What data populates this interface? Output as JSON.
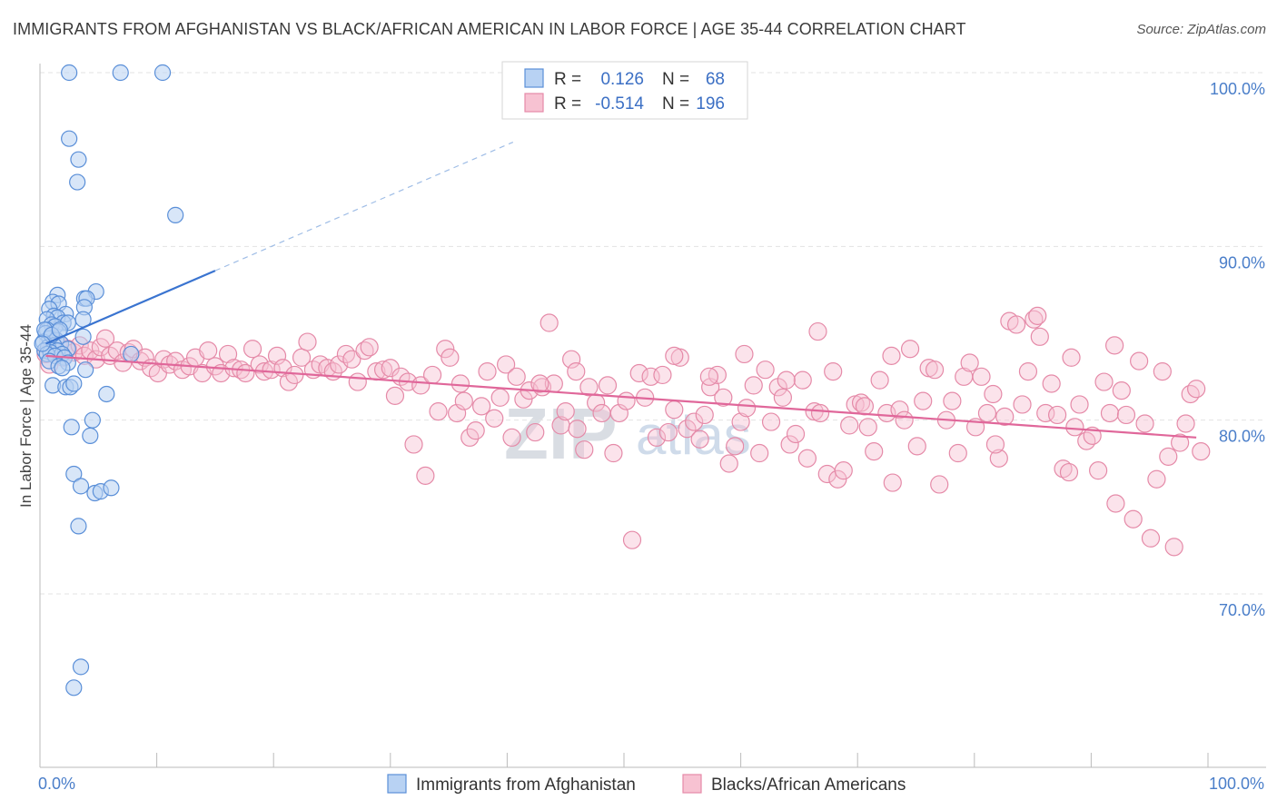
{
  "title": "IMMIGRANTS FROM AFGHANISTAN VS BLACK/AFRICAN AMERICAN IN LABOR FORCE | AGE 35-44 CORRELATION CHART",
  "source": "Source: ZipAtlas.com",
  "watermark": {
    "zip": "ZIP",
    "atlas": "atlas"
  },
  "legend": {
    "series": [
      {
        "r_label": "R =",
        "r_value": "0.126",
        "n_label": "N =",
        "n_value": "68"
      },
      {
        "r_label": "R =",
        "r_value": "-0.514",
        "n_label": "N =",
        "n_value": "196"
      }
    ]
  },
  "bottom_legend": [
    "Immigrants from Afghanistan",
    "Blacks/African Americans"
  ],
  "colors": {
    "blue_fill": "#b8d2f3",
    "blue_stroke": "#5a8fd8",
    "blue_line": "#3a74d0",
    "pink_fill": "#f7c2d2",
    "pink_stroke": "#e58aa8",
    "pink_line": "#e0679a",
    "grid": "#e3e3e3",
    "tick_text": "#4a7ec9"
  },
  "chart_data": {
    "type": "scatter",
    "title": "IMMIGRANTS FROM AFGHANISTAN VS BLACK/AFRICAN AMERICAN IN LABOR FORCE | AGE 35-44 CORRELATION CHART",
    "xlabel": "",
    "ylabel": "In Labor Force | Age 35-44",
    "xlim": [
      0,
      100
    ],
    "ylim": [
      60.5,
      101.5
    ],
    "x_tick_labels": [
      "0.0%",
      "100.0%"
    ],
    "y_ticks": [
      70,
      80,
      90,
      100
    ],
    "y_tick_labels": [
      "70.0%",
      "80.0%",
      "90.0%",
      "100.0%"
    ],
    "grid": true,
    "legend_position": "top-center",
    "series": [
      {
        "name": "Immigrants from Afghanistan",
        "r": 0.126,
        "n": 68,
        "trend": {
          "x0": 0.5,
          "y0": 84.4,
          "x1": 15.0,
          "y1": 88.6,
          "dash_to_x": 40.5,
          "dash_to_y": 96.0
        },
        "points": [
          [
            2.5,
            100.0
          ],
          [
            6.9,
            100.0
          ],
          [
            10.5,
            100.0
          ],
          [
            2.5,
            96.2
          ],
          [
            3.3,
            95.0
          ],
          [
            3.2,
            93.7
          ],
          [
            11.6,
            91.8
          ],
          [
            4.8,
            87.4
          ],
          [
            1.5,
            87.2
          ],
          [
            3.8,
            87.0
          ],
          [
            4.0,
            87.0
          ],
          [
            1.1,
            86.8
          ],
          [
            1.6,
            86.7
          ],
          [
            0.8,
            86.4
          ],
          [
            3.8,
            86.5
          ],
          [
            2.2,
            86.1
          ],
          [
            1.2,
            86.0
          ],
          [
            1.5,
            85.9
          ],
          [
            3.7,
            85.8
          ],
          [
            0.6,
            85.8
          ],
          [
            2.0,
            85.6
          ],
          [
            2.4,
            85.6
          ],
          [
            1.0,
            85.5
          ],
          [
            1.3,
            85.4
          ],
          [
            0.6,
            85.2
          ],
          [
            1.6,
            85.1
          ],
          [
            0.5,
            85.0
          ],
          [
            3.7,
            84.8
          ],
          [
            0.8,
            84.7
          ],
          [
            1.4,
            84.6
          ],
          [
            0.3,
            84.5
          ],
          [
            1.8,
            84.4
          ],
          [
            1.2,
            84.3
          ],
          [
            0.7,
            84.2
          ],
          [
            2.4,
            84.1
          ],
          [
            0.4,
            84.0
          ],
          [
            1.5,
            84.0
          ],
          [
            0.9,
            83.9
          ],
          [
            1.9,
            83.8
          ],
          [
            0.6,
            83.8
          ],
          [
            1.3,
            83.7
          ],
          [
            2.1,
            83.6
          ],
          [
            7.8,
            83.8
          ],
          [
            0.8,
            83.4
          ],
          [
            2.4,
            83.3
          ],
          [
            1.6,
            83.1
          ],
          [
            1.9,
            83.0
          ],
          [
            3.9,
            82.9
          ],
          [
            1.1,
            82.0
          ],
          [
            2.2,
            81.9
          ],
          [
            2.6,
            81.9
          ],
          [
            2.9,
            82.1
          ],
          [
            5.7,
            81.5
          ],
          [
            4.5,
            80.0
          ],
          [
            2.7,
            79.6
          ],
          [
            4.3,
            79.1
          ],
          [
            2.9,
            76.9
          ],
          [
            3.5,
            76.2
          ],
          [
            4.7,
            75.8
          ],
          [
            5.2,
            75.9
          ],
          [
            6.1,
            76.1
          ],
          [
            3.3,
            73.9
          ],
          [
            3.5,
            65.8
          ],
          [
            2.9,
            64.6
          ],
          [
            0.4,
            85.2
          ],
          [
            1.0,
            84.9
          ],
          [
            1.7,
            85.2
          ],
          [
            0.2,
            84.4
          ]
        ]
      },
      {
        "name": "Blacks/African Americans",
        "r": -0.514,
        "n": 196,
        "trend": {
          "x0": 0.5,
          "y0": 83.7,
          "x1": 99.0,
          "y1": 79.0
        },
        "points": [
          [
            0.5,
            83.8
          ],
          [
            0.8,
            83.2
          ],
          [
            1.2,
            84.0
          ],
          [
            1.6,
            84.4
          ],
          [
            2.0,
            83.6
          ],
          [
            2.4,
            84.1
          ],
          [
            2.9,
            83.9
          ],
          [
            3.4,
            84.3
          ],
          [
            3.8,
            83.7
          ],
          [
            4.3,
            84.0
          ],
          [
            4.8,
            83.5
          ],
          [
            5.2,
            84.2
          ],
          [
            5.6,
            84.7
          ],
          [
            6.0,
            83.7
          ],
          [
            6.6,
            84.0
          ],
          [
            7.1,
            83.3
          ],
          [
            7.6,
            83.9
          ],
          [
            8.0,
            84.1
          ],
          [
            8.6,
            83.4
          ],
          [
            9.0,
            83.6
          ],
          [
            9.5,
            83.0
          ],
          [
            10.1,
            82.7
          ],
          [
            10.6,
            83.5
          ],
          [
            11.1,
            83.2
          ],
          [
            11.6,
            83.4
          ],
          [
            12.2,
            82.9
          ],
          [
            12.8,
            83.1
          ],
          [
            13.3,
            83.6
          ],
          [
            13.9,
            82.7
          ],
          [
            14.4,
            84.0
          ],
          [
            15.0,
            83.1
          ],
          [
            15.5,
            82.7
          ],
          [
            16.1,
            83.8
          ],
          [
            16.6,
            83.0
          ],
          [
            17.2,
            82.9
          ],
          [
            17.6,
            82.7
          ],
          [
            18.2,
            84.1
          ],
          [
            18.8,
            83.2
          ],
          [
            19.2,
            82.8
          ],
          [
            19.8,
            82.9
          ],
          [
            20.3,
            83.7
          ],
          [
            20.8,
            83.0
          ],
          [
            21.3,
            82.2
          ],
          [
            21.8,
            82.6
          ],
          [
            22.4,
            83.6
          ],
          [
            22.9,
            84.5
          ],
          [
            23.4,
            82.9
          ],
          [
            24.0,
            83.2
          ],
          [
            24.6,
            83.0
          ],
          [
            25.1,
            82.8
          ],
          [
            25.6,
            83.2
          ],
          [
            26.2,
            83.8
          ],
          [
            26.7,
            83.5
          ],
          [
            27.2,
            82.2
          ],
          [
            27.8,
            84.0
          ],
          [
            28.2,
            84.2
          ],
          [
            28.8,
            82.8
          ],
          [
            29.4,
            82.9
          ],
          [
            30.0,
            83.0
          ],
          [
            30.4,
            81.4
          ],
          [
            30.9,
            82.5
          ],
          [
            31.5,
            82.2
          ],
          [
            32.0,
            78.6
          ],
          [
            32.6,
            82.0
          ],
          [
            33.0,
            76.8
          ],
          [
            33.6,
            82.6
          ],
          [
            34.1,
            80.5
          ],
          [
            34.7,
            84.1
          ],
          [
            35.1,
            83.6
          ],
          [
            35.7,
            80.4
          ],
          [
            36.3,
            81.1
          ],
          [
            36.8,
            79.0
          ],
          [
            37.3,
            79.4
          ],
          [
            37.8,
            80.8
          ],
          [
            38.3,
            82.8
          ],
          [
            38.9,
            80.1
          ],
          [
            39.4,
            81.3
          ],
          [
            39.9,
            83.2
          ],
          [
            40.4,
            79.0
          ],
          [
            40.8,
            82.5
          ],
          [
            41.4,
            81.2
          ],
          [
            41.9,
            81.7
          ],
          [
            42.4,
            79.3
          ],
          [
            43.0,
            81.9
          ],
          [
            43.6,
            85.6
          ],
          [
            44.0,
            82.1
          ],
          [
            44.6,
            79.7
          ],
          [
            45.0,
            80.5
          ],
          [
            45.5,
            83.5
          ],
          [
            46.0,
            79.5
          ],
          [
            46.6,
            78.3
          ],
          [
            47.0,
            81.9
          ],
          [
            47.6,
            81.0
          ],
          [
            48.1,
            80.4
          ],
          [
            48.6,
            82.0
          ],
          [
            49.1,
            78.1
          ],
          [
            49.6,
            80.4
          ],
          [
            50.2,
            81.1
          ],
          [
            50.7,
            73.1
          ],
          [
            51.3,
            82.7
          ],
          [
            51.8,
            81.3
          ],
          [
            52.3,
            82.5
          ],
          [
            52.8,
            79.0
          ],
          [
            53.3,
            82.6
          ],
          [
            53.8,
            79.3
          ],
          [
            54.3,
            80.6
          ],
          [
            54.8,
            83.6
          ],
          [
            55.4,
            79.5
          ],
          [
            56.0,
            79.9
          ],
          [
            56.5,
            78.9
          ],
          [
            56.9,
            80.3
          ],
          [
            57.4,
            81.9
          ],
          [
            58.0,
            82.6
          ],
          [
            58.5,
            81.3
          ],
          [
            59.0,
            77.5
          ],
          [
            59.5,
            78.5
          ],
          [
            60.0,
            79.9
          ],
          [
            60.5,
            80.7
          ],
          [
            61.1,
            82.0
          ],
          [
            61.6,
            78.1
          ],
          [
            62.1,
            82.9
          ],
          [
            62.6,
            79.9
          ],
          [
            63.2,
            81.9
          ],
          [
            63.6,
            81.3
          ],
          [
            64.2,
            78.6
          ],
          [
            64.7,
            79.2
          ],
          [
            65.3,
            82.3
          ],
          [
            65.7,
            77.8
          ],
          [
            66.3,
            80.5
          ],
          [
            66.8,
            80.4
          ],
          [
            67.4,
            76.9
          ],
          [
            67.9,
            82.8
          ],
          [
            68.3,
            76.6
          ],
          [
            68.8,
            77.1
          ],
          [
            69.3,
            79.7
          ],
          [
            69.8,
            80.9
          ],
          [
            70.3,
            81.0
          ],
          [
            70.9,
            79.6
          ],
          [
            71.4,
            78.2
          ],
          [
            71.9,
            82.3
          ],
          [
            72.5,
            80.4
          ],
          [
            73.0,
            76.4
          ],
          [
            73.6,
            80.6
          ],
          [
            74.0,
            80.0
          ],
          [
            74.5,
            84.1
          ],
          [
            75.1,
            78.5
          ],
          [
            75.6,
            81.1
          ],
          [
            76.1,
            83.0
          ],
          [
            76.6,
            82.9
          ],
          [
            77.0,
            76.3
          ],
          [
            77.6,
            80.0
          ],
          [
            78.1,
            81.1
          ],
          [
            78.6,
            78.1
          ],
          [
            79.1,
            82.5
          ],
          [
            79.6,
            83.3
          ],
          [
            80.1,
            79.6
          ],
          [
            80.6,
            82.5
          ],
          [
            81.1,
            80.4
          ],
          [
            81.6,
            81.5
          ],
          [
            82.1,
            77.8
          ],
          [
            82.6,
            80.2
          ],
          [
            83.0,
            85.7
          ],
          [
            83.6,
            85.5
          ],
          [
            84.1,
            80.9
          ],
          [
            84.6,
            82.8
          ],
          [
            85.1,
            85.8
          ],
          [
            85.6,
            84.8
          ],
          [
            86.1,
            80.4
          ],
          [
            86.6,
            82.1
          ],
          [
            87.1,
            80.3
          ],
          [
            87.6,
            77.2
          ],
          [
            88.1,
            77.0
          ],
          [
            88.6,
            79.6
          ],
          [
            89.0,
            80.9
          ],
          [
            89.6,
            78.8
          ],
          [
            90.1,
            79.1
          ],
          [
            90.6,
            77.1
          ],
          [
            91.1,
            82.2
          ],
          [
            91.6,
            80.4
          ],
          [
            92.1,
            75.2
          ],
          [
            92.6,
            81.7
          ],
          [
            93.0,
            80.3
          ],
          [
            93.6,
            74.3
          ],
          [
            94.1,
            83.4
          ],
          [
            94.6,
            79.8
          ],
          [
            95.1,
            73.2
          ],
          [
            95.6,
            76.6
          ],
          [
            96.1,
            82.8
          ],
          [
            96.6,
            77.9
          ],
          [
            97.1,
            72.7
          ],
          [
            97.6,
            78.7
          ],
          [
            98.1,
            79.8
          ],
          [
            98.5,
            81.5
          ],
          [
            99.0,
            81.8
          ],
          [
            99.4,
            78.2
          ],
          [
            85.4,
            86.0
          ],
          [
            92.0,
            84.3
          ],
          [
            88.3,
            83.6
          ],
          [
            81.8,
            78.6
          ],
          [
            72.9,
            83.7
          ],
          [
            70.6,
            80.8
          ],
          [
            66.6,
            85.1
          ],
          [
            63.9,
            82.3
          ],
          [
            60.3,
            83.8
          ],
          [
            57.3,
            82.5
          ],
          [
            54.3,
            83.7
          ],
          [
            45.9,
            82.8
          ],
          [
            42.8,
            82.1
          ],
          [
            36.0,
            82.1
          ]
        ]
      }
    ]
  }
}
